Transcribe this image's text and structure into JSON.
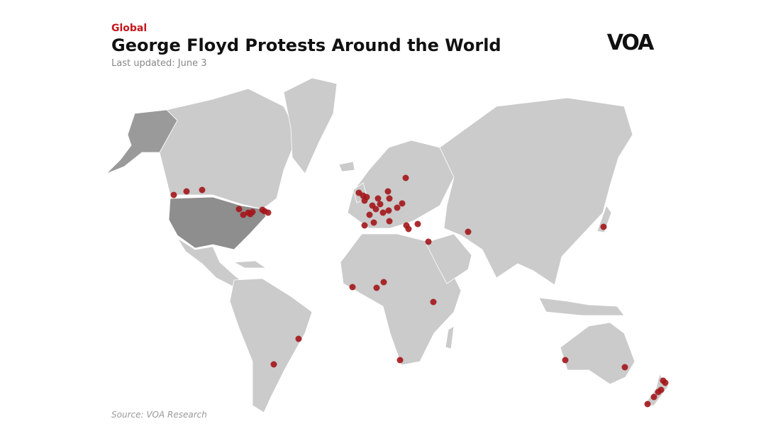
{
  "header": {
    "kicker": "Global",
    "title": "George Floyd Protests Around the World",
    "subtitle": "Last updated: June 3",
    "logo": "VOA"
  },
  "footer": {
    "source": "Source: VOA Research"
  }
}
